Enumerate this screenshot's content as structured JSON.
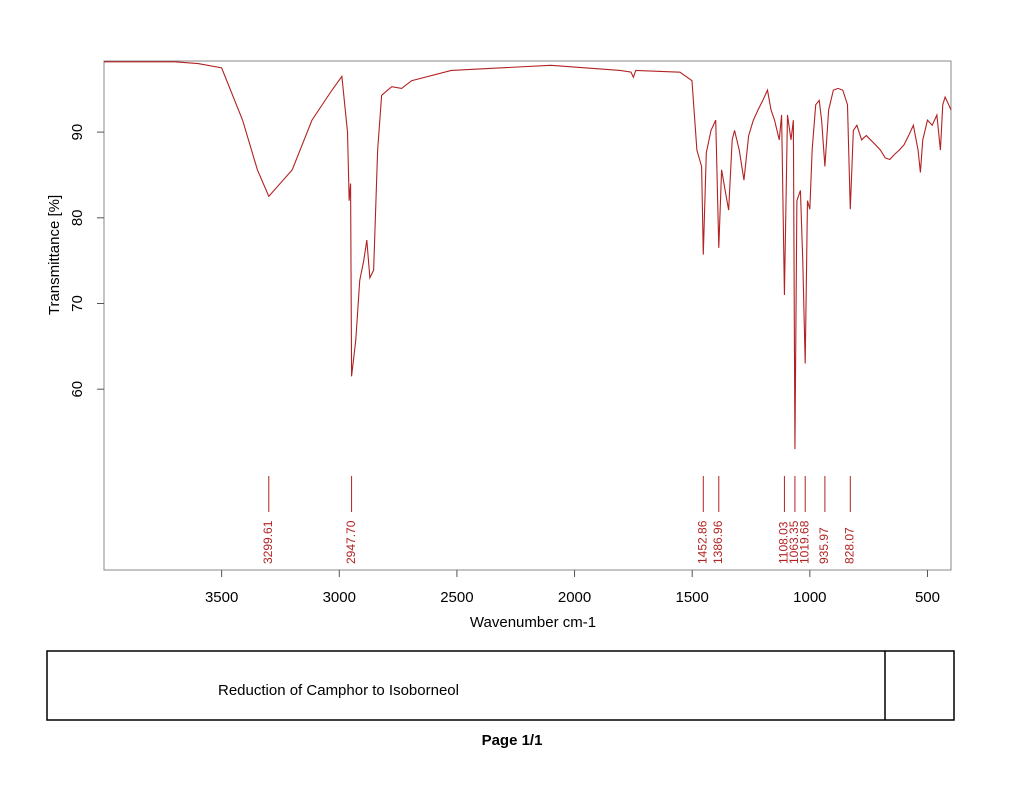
{
  "chart_data": {
    "type": "line",
    "title": "Reduction of Camphor to Isoborneol",
    "footer": "Page 1/1",
    "x_label": "Wavenumber cm-1",
    "y_label": "Transmittance [%]",
    "xlim": [
      4000,
      400
    ],
    "ylim": [
      38.9,
      98.3
    ],
    "xticks": [
      3500,
      3000,
      2500,
      2000,
      1500,
      1000,
      500
    ],
    "yticks": [
      60,
      70,
      80,
      90
    ],
    "color": "#b22222",
    "peak_color": "#b22222",
    "x": [
      4000,
      3700,
      3600,
      3500,
      3411,
      3348,
      3299.61,
      3200,
      3116,
      3031,
      2989,
      2965,
      2958,
      2952,
      2947.7,
      2930,
      2913,
      2896,
      2883,
      2870,
      2854,
      2837,
      2820,
      2777,
      2735,
      2693,
      2524,
      2101,
      1806,
      1760,
      1750,
      1740,
      1552,
      1501,
      1480,
      1460,
      1452.86,
      1440,
      1420,
      1400,
      1386.96,
      1375,
      1360,
      1345,
      1330,
      1320,
      1300,
      1280,
      1260,
      1240,
      1220,
      1200,
      1180,
      1165,
      1150,
      1130,
      1120,
      1108.03,
      1095,
      1080,
      1070,
      1063.35,
      1055,
      1040,
      1030,
      1019.68,
      1010,
      1000,
      990,
      975,
      960,
      950,
      935.97,
      920,
      900,
      880,
      860,
      840,
      828.07,
      815,
      800,
      780,
      760,
      720,
      700,
      680,
      660,
      640,
      620,
      600,
      580,
      560,
      540,
      530,
      520,
      500,
      480,
      460,
      445,
      435,
      425,
      410,
      400
    ],
    "values": [
      98.2,
      98.2,
      98,
      97.5,
      91.4,
      85.6,
      82.5,
      85.6,
      91.4,
      94.9,
      96.5,
      90,
      82,
      84,
      61.5,
      65.7,
      72.7,
      75,
      77.4,
      73,
      73.9,
      87.9,
      94.3,
      95.3,
      95.1,
      96,
      97.2,
      97.8,
      97.2,
      97,
      96.4,
      97.2,
      97,
      96,
      87.9,
      86,
      75.7,
      87.6,
      90.2,
      91.4,
      76.5,
      85.6,
      83.2,
      80.9,
      89.1,
      90.2,
      87.9,
      84.4,
      89.6,
      91.4,
      92.6,
      93.7,
      94.9,
      92.6,
      91.4,
      89.1,
      92,
      71,
      92,
      89.1,
      91.4,
      53,
      82,
      83.2,
      75,
      63,
      82,
      81,
      88,
      93.2,
      93.7,
      91.4,
      86,
      92.6,
      94.9,
      95.1,
      94.9,
      93.2,
      81,
      90.2,
      90.8,
      89.1,
      89.6,
      88.5,
      87.9,
      87,
      86.8,
      87.4,
      87.9,
      88.5,
      89.6,
      90.8,
      87.9,
      85.3,
      89.1,
      91.4,
      90.8,
      92,
      87.9,
      93.2,
      94.1,
      93.2,
      92.6
    ],
    "peaks": [
      {
        "value": 3299.61,
        "label": "3299.61"
      },
      {
        "value": 2947.7,
        "label": "2947.70"
      },
      {
        "value": 1452.86,
        "label": "1452.86"
      },
      {
        "value": 1386.96,
        "label": "1386.96"
      },
      {
        "value": 1108.03,
        "label": "1108.03"
      },
      {
        "value": 1063.35,
        "label": "1063.35"
      },
      {
        "value": 1019.68,
        "label": "1019.68"
      },
      {
        "value": 935.97,
        "label": "935.97"
      },
      {
        "value": 828.07,
        "label": "828.07"
      }
    ]
  }
}
